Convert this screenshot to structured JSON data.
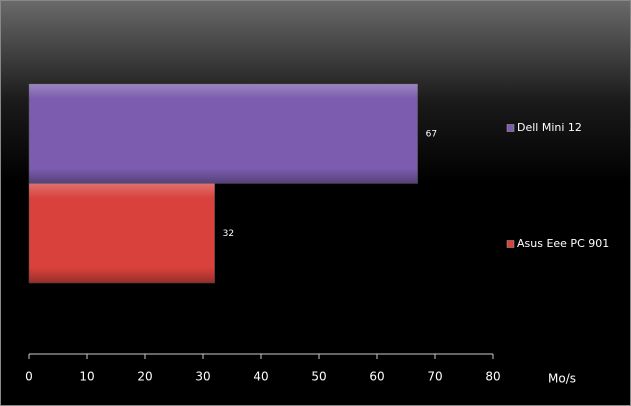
{
  "chart_data": {
    "type": "bar",
    "orientation": "horizontal",
    "categories": [
      null
    ],
    "series": [
      {
        "name": "Dell Mini 12",
        "color": "#7b5cae",
        "values": [
          67
        ]
      },
      {
        "name": "Asus Eee PC 901",
        "color": "#d8413c",
        "values": [
          32
        ]
      }
    ],
    "xlabel": "Mo/s",
    "xlim": [
      0,
      80
    ],
    "xticks": [
      0,
      10,
      20,
      30,
      40,
      50,
      60,
      70,
      80
    ],
    "legend": "right",
    "data_labels": true
  }
}
